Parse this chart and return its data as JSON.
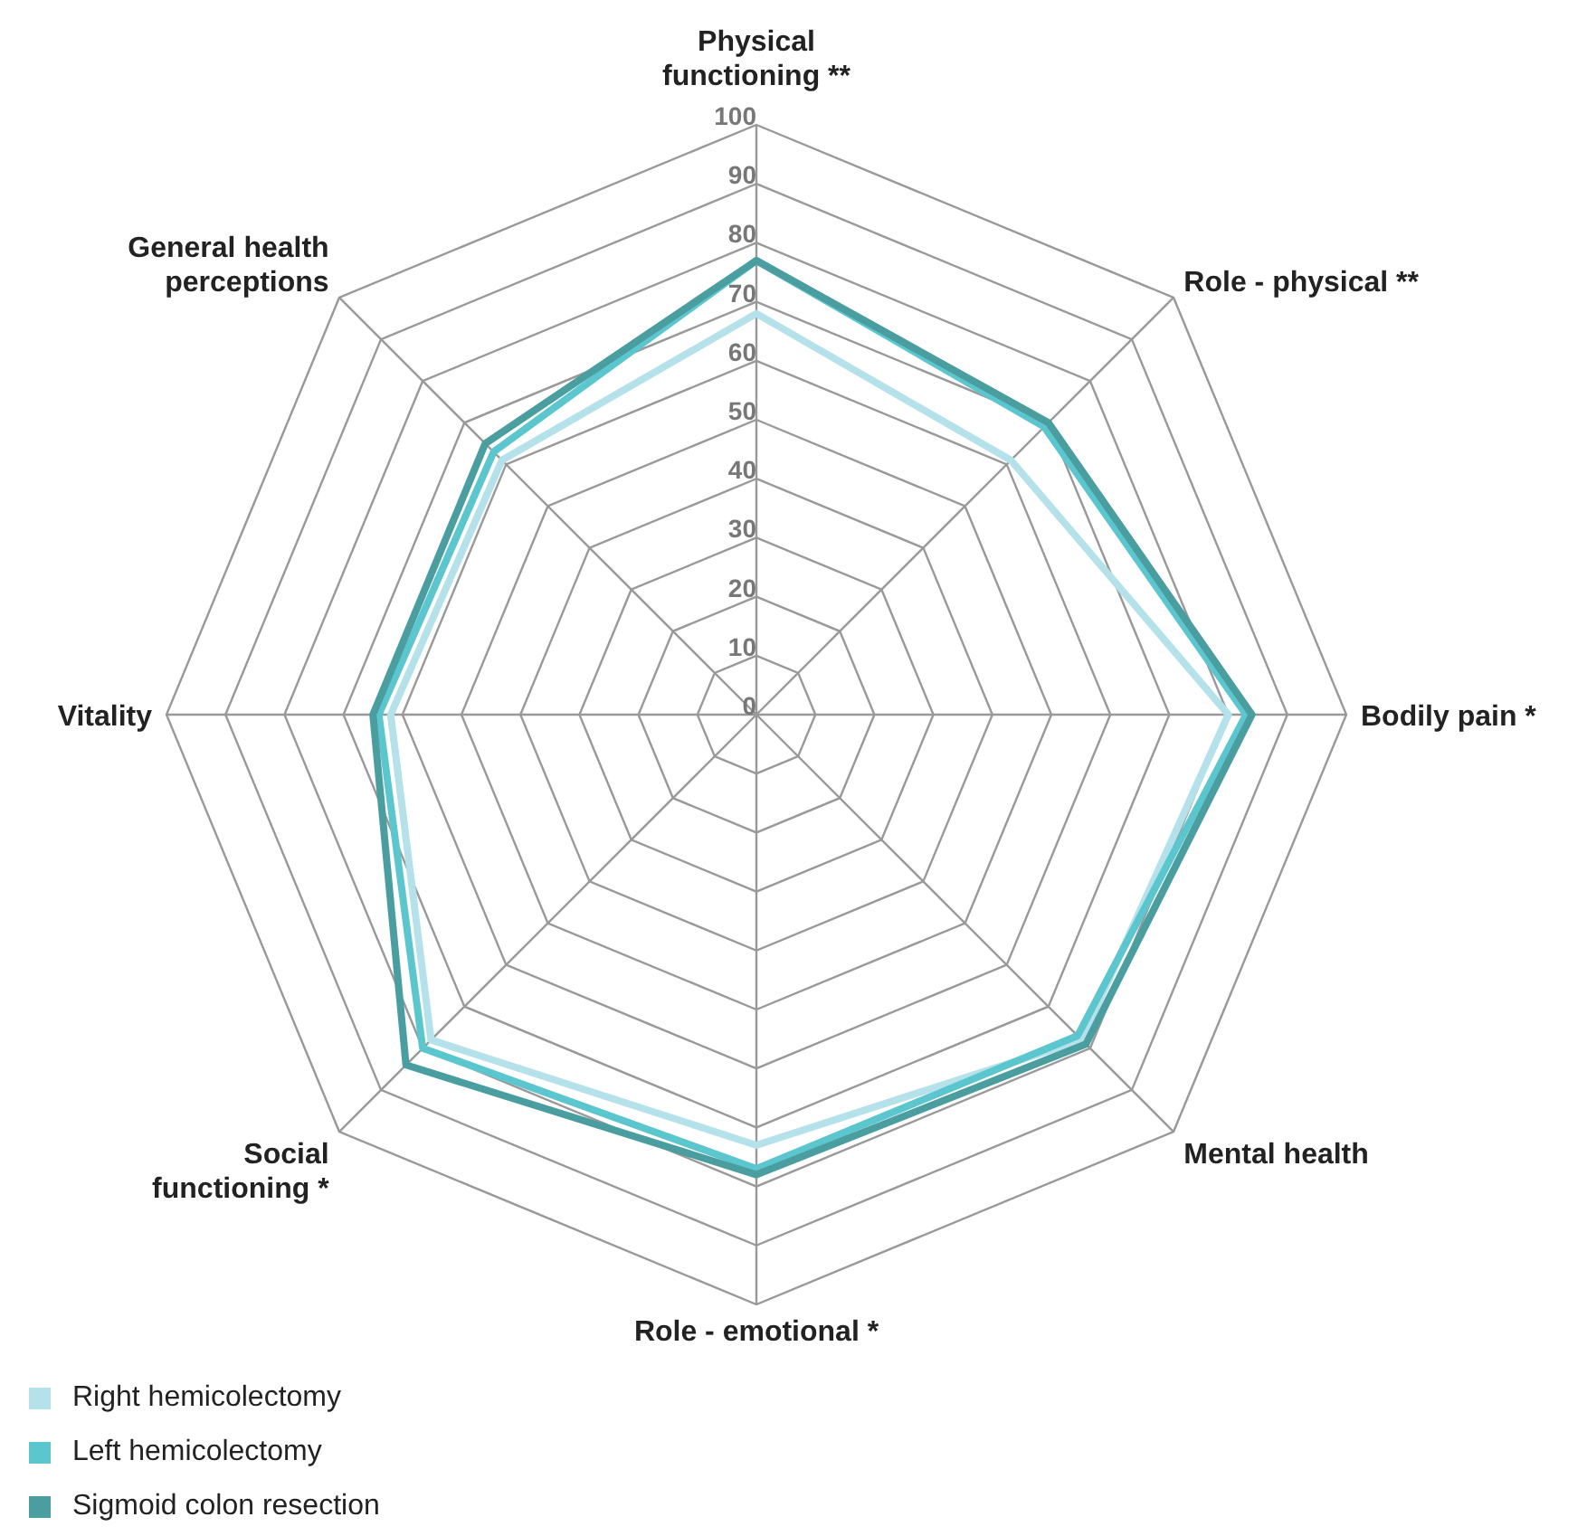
{
  "chart_data": {
    "type": "radar",
    "categories": [
      "Physical functioning **",
      "Role - physical **",
      "Bodily pain *",
      "Mental health",
      "Role - emotional *",
      "Social functioning *",
      "Vitality",
      "General health perceptions"
    ],
    "series": [
      {
        "name": "Right hemicolectomy",
        "color": "#b5e2ea",
        "values": [
          68,
          61,
          80,
          78,
          73,
          78,
          62,
          61
        ]
      },
      {
        "name": "Left hemicolectomy",
        "color": "#5cc6cf",
        "values": [
          77,
          69,
          83,
          77,
          77,
          80,
          64,
          63
        ]
      },
      {
        "name": "Sigmoid colon resection",
        "color": "#4a9ea0",
        "values": [
          77,
          70,
          84,
          79,
          78,
          84,
          65,
          65
        ]
      }
    ],
    "ylim": [
      0,
      100
    ],
    "yticks": [
      0,
      10,
      20,
      30,
      40,
      50,
      60,
      70,
      80,
      90,
      100
    ],
    "grid": true,
    "legend": "bottom left",
    "marker": "none",
    "line_style": "solid"
  }
}
